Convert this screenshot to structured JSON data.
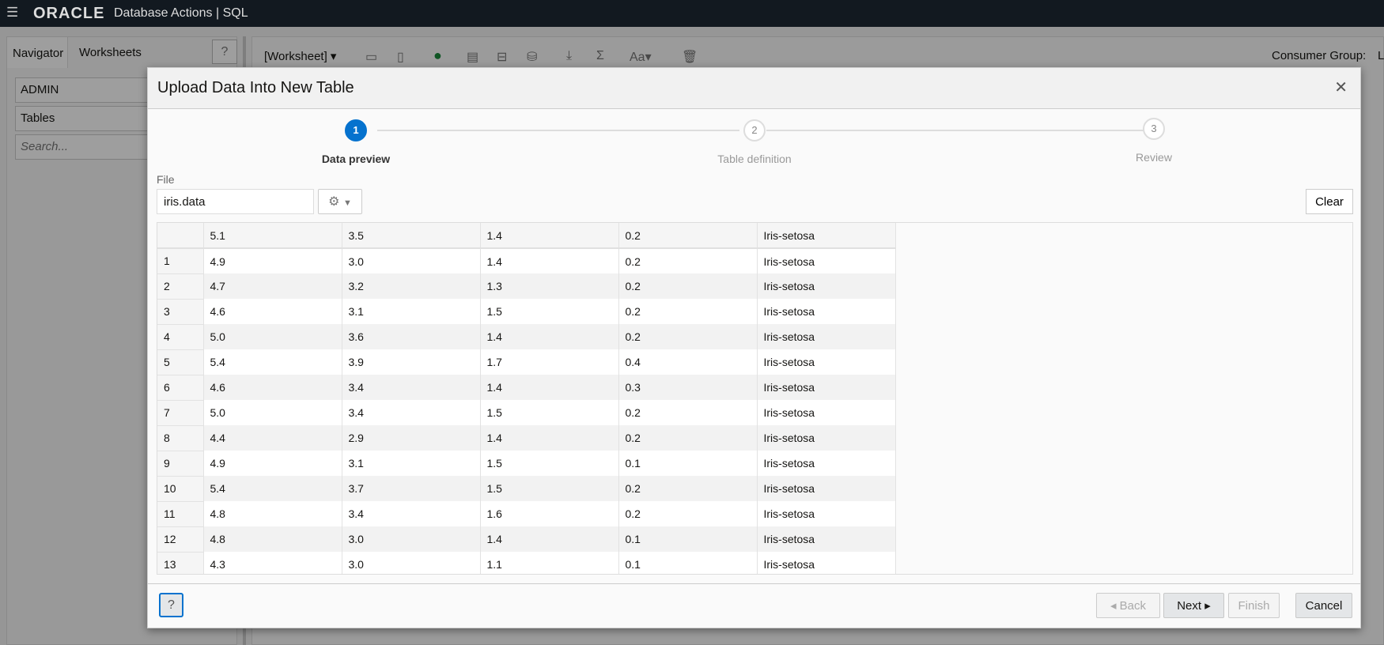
{
  "topbar": {
    "menu_icon": "hamburger-icon",
    "logo": "ORACLE",
    "title": "Database Actions | SQL"
  },
  "background": {
    "tabs": [
      "Navigator",
      "Worksheets"
    ],
    "schema": "ADMIN",
    "object_type": "Tables",
    "search_placeholder": "Search...",
    "worksheet": "[Worksheet] ▾",
    "consumer_group_label": "Consumer Group:",
    "consumer_group_value": "L"
  },
  "dialog": {
    "title": "Upload Data Into New Table",
    "steps": [
      {
        "num": "1",
        "label": "Data preview",
        "active": true
      },
      {
        "num": "2",
        "label": "Table definition",
        "active": false
      },
      {
        "num": "3",
        "label": "Review",
        "active": false
      }
    ],
    "file_label": "File",
    "file_value": "iris.data",
    "clear": "Clear",
    "header": [
      "5.1",
      "3.5",
      "1.4",
      "0.2",
      "Iris-setosa"
    ],
    "rows": [
      [
        "1",
        "4.9",
        "3.0",
        "1.4",
        "0.2",
        "Iris-setosa"
      ],
      [
        "2",
        "4.7",
        "3.2",
        "1.3",
        "0.2",
        "Iris-setosa"
      ],
      [
        "3",
        "4.6",
        "3.1",
        "1.5",
        "0.2",
        "Iris-setosa"
      ],
      [
        "4",
        "5.0",
        "3.6",
        "1.4",
        "0.2",
        "Iris-setosa"
      ],
      [
        "5",
        "5.4",
        "3.9",
        "1.7",
        "0.4",
        "Iris-setosa"
      ],
      [
        "6",
        "4.6",
        "3.4",
        "1.4",
        "0.3",
        "Iris-setosa"
      ],
      [
        "7",
        "5.0",
        "3.4",
        "1.5",
        "0.2",
        "Iris-setosa"
      ],
      [
        "8",
        "4.4",
        "2.9",
        "1.4",
        "0.2",
        "Iris-setosa"
      ],
      [
        "9",
        "4.9",
        "3.1",
        "1.5",
        "0.1",
        "Iris-setosa"
      ],
      [
        "10",
        "5.4",
        "3.7",
        "1.5",
        "0.2",
        "Iris-setosa"
      ],
      [
        "11",
        "4.8",
        "3.4",
        "1.6",
        "0.2",
        "Iris-setosa"
      ],
      [
        "12",
        "4.8",
        "3.0",
        "1.4",
        "0.1",
        "Iris-setosa"
      ],
      [
        "13",
        "4.3",
        "3.0",
        "1.1",
        "0.1",
        "Iris-setosa"
      ]
    ],
    "buttons": {
      "back": "◂ Back",
      "next": "Next ▸",
      "finish": "Finish",
      "cancel": "Cancel"
    },
    "accent": "#0572ce"
  }
}
